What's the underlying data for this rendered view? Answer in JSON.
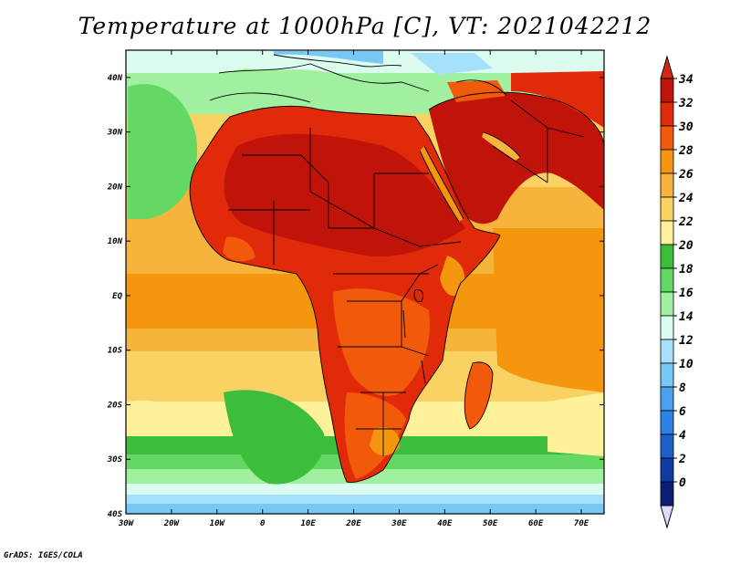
{
  "title": "Temperature at 1000hPa [C], VT: 2021042212",
  "credit": "GrADS: IGES/COLA",
  "map": {
    "lon_range": [
      -30,
      75
    ],
    "lat_range": [
      -40,
      45
    ],
    "lon_ticks": [
      {
        "value": -30,
        "label": "30W"
      },
      {
        "value": -20,
        "label": "20W"
      },
      {
        "value": -10,
        "label": "10W"
      },
      {
        "value": 0,
        "label": "0"
      },
      {
        "value": 10,
        "label": "10E"
      },
      {
        "value": 20,
        "label": "20E"
      },
      {
        "value": 30,
        "label": "30E"
      },
      {
        "value": 40,
        "label": "40E"
      },
      {
        "value": 50,
        "label": "50E"
      },
      {
        "value": 60,
        "label": "60E"
      },
      {
        "value": 70,
        "label": "70E"
      }
    ],
    "lat_ticks": [
      {
        "value": 40,
        "label": "40N"
      },
      {
        "value": 30,
        "label": "30N"
      },
      {
        "value": 20,
        "label": "20N"
      },
      {
        "value": 10,
        "label": "10N"
      },
      {
        "value": 0,
        "label": "EQ"
      },
      {
        "value": -10,
        "label": "10S"
      },
      {
        "value": -20,
        "label": "20S"
      },
      {
        "value": -30,
        "label": "30S"
      },
      {
        "value": -40,
        "label": "40S"
      }
    ]
  },
  "colorbar": {
    "labels": [
      "34",
      "32",
      "30",
      "28",
      "26",
      "24",
      "22",
      "20",
      "18",
      "16",
      "14",
      "12",
      "10",
      "8",
      "6",
      "4",
      "2",
      "0"
    ],
    "colors": [
      "#c0140a",
      "#e02a0a",
      "#f05a0a",
      "#f5960f",
      "#f7b43c",
      "#fad264",
      "#fff09a",
      "#3cbe3c",
      "#64d764",
      "#a0f0a0",
      "#dcfcf0",
      "#a6e0fa",
      "#78c8f5",
      "#4ba0f0",
      "#2d82e6",
      "#1e5fc8",
      "#0f3ca0",
      "#0a1e78"
    ],
    "top_color": "#d2280f",
    "bottom_color": "#dcdcfa"
  }
}
